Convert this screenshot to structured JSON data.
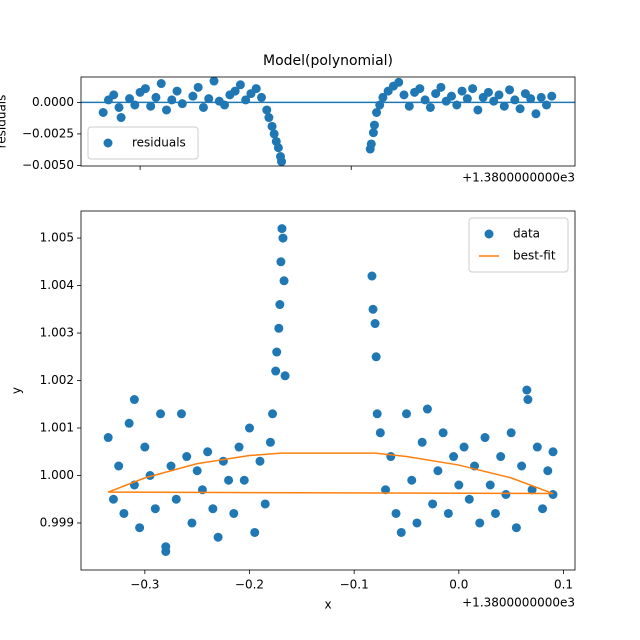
{
  "chart_data": [
    {
      "type": "scatter",
      "title": "Model(polynomial)",
      "ylabel": "residuals",
      "x_offset_label": "+1.3800000000e3",
      "xlim": [
        -0.356,
        0.112
      ],
      "xticks": [
        -0.3,
        -0.1
      ],
      "ylim": [
        -0.00505,
        0.00202
      ],
      "yticks": [
        {
          "value": 0,
          "label": "0.0000"
        },
        {
          "value": -0.0025,
          "label": "−0.0025"
        },
        {
          "value": -0.005,
          "label": "−0.0050"
        }
      ],
      "hline": 0,
      "legend": "lower left",
      "series": [
        {
          "name": "residuals",
          "color": "#1f77b4",
          "mode": "markers",
          "x": [
            -0.335,
            -0.33,
            -0.325,
            -0.32,
            -0.318,
            -0.31,
            -0.305,
            -0.3,
            -0.295,
            -0.29,
            -0.285,
            -0.28,
            -0.275,
            -0.27,
            -0.265,
            -0.26,
            -0.25,
            -0.245,
            -0.24,
            -0.235,
            -0.23,
            -0.225,
            -0.22,
            -0.215,
            -0.21,
            -0.205,
            -0.2,
            -0.195,
            -0.19,
            -0.185,
            -0.18,
            -0.178,
            -0.175,
            -0.173,
            -0.171,
            -0.169,
            -0.167,
            -0.166,
            -0.082,
            -0.081,
            -0.079,
            -0.078,
            -0.076,
            -0.073,
            -0.07,
            -0.065,
            -0.06,
            -0.055,
            -0.05,
            -0.045,
            -0.04,
            -0.035,
            -0.03,
            -0.025,
            -0.02,
            -0.015,
            -0.01,
            -0.005,
            0,
            0.005,
            0.01,
            0.015,
            0.02,
            0.025,
            0.03,
            0.035,
            0.04,
            0.045,
            0.05,
            0.055,
            0.06,
            0.065,
            0.07,
            0.075,
            0.08,
            0.085,
            0.09
          ],
          "values": [
            -0.0008,
            0.0002,
            0.0006,
            -0.0004,
            -0.0012,
            0.0003,
            -0.0002,
            0.0008,
            0.0011,
            -0.0003,
            0.0004,
            0.0015,
            -0.0006,
            0.0002,
            0.0009,
            -0.0001,
            0.0005,
            0.0012,
            -0.0004,
            0.0003,
            0.0017,
            0.0001,
            -0.0002,
            0.0006,
            0.0009,
            0.0014,
            0.0002,
            0.0007,
            0.0011,
            0.0004,
            -0.0006,
            -0.0012,
            -0.0019,
            -0.0025,
            -0.0031,
            -0.0036,
            -0.0043,
            -0.0047,
            -0.0037,
            -0.0033,
            -0.0024,
            -0.0018,
            -0.0008,
            -0.0002,
            0.0004,
            0.0009,
            0.0013,
            0.0016,
            0.0006,
            -0.0003,
            0.0008,
            0.0011,
            0.0002,
            -0.0004,
            0.0007,
            0.0012,
            0.0001,
            0.0005,
            -0.0002,
            0.0009,
            0.0003,
            0.0011,
            -0.0006,
            0.0004,
            0.0008,
            0.0001,
            0.0006,
            -0.0003,
            0.001,
            0.0002,
            -0.0005,
            0.0007,
            0.0003,
            -0.0009,
            0.0004,
            -0.0002,
            0.0005
          ]
        }
      ]
    },
    {
      "type": "scatter",
      "xlabel": "x",
      "ylabel": "y",
      "x_offset_label": "+1.3800000000e3",
      "xlim": [
        -0.361,
        0.111
      ],
      "xticks": [
        {
          "value": -0.3,
          "label": "−0.3"
        },
        {
          "value": -0.2,
          "label": "−0.2"
        },
        {
          "value": -0.1,
          "label": "−0.1"
        },
        {
          "value": 0,
          "label": "0.0"
        },
        0.1
      ],
      "ylim": [
        0.99801,
        1.00557
      ],
      "yticks": [
        0.999,
        {
          "value": 1,
          "label": "1.000"
        },
        1.001,
        1.002,
        1.003,
        1.004,
        1.005
      ],
      "legend": "upper right",
      "series": [
        {
          "name": "data",
          "color": "#1f77b4",
          "mode": "markers",
          "x": [
            -0.335,
            -0.33,
            -0.325,
            -0.32,
            -0.315,
            -0.31,
            -0.31,
            -0.305,
            -0.3,
            -0.295,
            -0.29,
            -0.285,
            -0.28,
            -0.28,
            -0.275,
            -0.27,
            -0.265,
            -0.26,
            -0.255,
            -0.25,
            -0.245,
            -0.24,
            -0.235,
            -0.23,
            -0.225,
            -0.22,
            -0.215,
            -0.21,
            -0.205,
            -0.2,
            -0.195,
            -0.19,
            -0.185,
            -0.18,
            -0.178,
            -0.175,
            -0.174,
            -0.172,
            -0.171,
            -0.17,
            -0.169,
            -0.168,
            -0.167,
            -0.166,
            -0.083,
            -0.082,
            -0.08,
            -0.079,
            -0.078,
            -0.075,
            -0.07,
            -0.065,
            -0.06,
            -0.055,
            -0.05,
            -0.045,
            -0.04,
            -0.035,
            -0.03,
            -0.025,
            -0.02,
            -0.015,
            -0.01,
            -0.005,
            0,
            0.005,
            0.01,
            0.015,
            0.02,
            0.025,
            0.03,
            0.035,
            0.04,
            0.045,
            0.05,
            0.055,
            0.06,
            0.065,
            0.066,
            0.07,
            0.075,
            0.08,
            0.085,
            0.09,
            0.09
          ],
          "values": [
            1.0008,
            0.9995,
            1.0002,
            0.9992,
            1.0011,
            1.0016,
            0.9998,
            0.9989,
            1.0006,
            1.0,
            0.9993,
            1.0013,
            0.9984,
            0.9985,
            1.0002,
            0.9995,
            1.0013,
            1.0004,
            0.999,
            1.0001,
            0.9997,
            1.0005,
            0.9993,
            0.9987,
            1.0003,
            0.9999,
            0.9992,
            1.0006,
            0.9999,
            1.001,
            0.9988,
            1.0003,
            0.9994,
            1.0007,
            1.0013,
            1.0022,
            1.0026,
            1.0031,
            1.0036,
            1.0045,
            1.0052,
            1.005,
            1.0041,
            1.0021,
            1.0042,
            1.0035,
            1.0032,
            1.0025,
            1.0013,
            1.0009,
            0.9997,
            1.0004,
            0.9992,
            0.9988,
            1.0013,
            0.9999,
            0.999,
            1.0007,
            1.0014,
            0.9994,
            1.0001,
            1.0009,
            0.9992,
            1.0004,
            0.9998,
            1.0006,
            0.9995,
            1.0002,
            0.999,
            1.0008,
            0.9998,
            0.9992,
            1.0004,
            0.9996,
            1.0009,
            0.9989,
            1.0002,
            1.0018,
            1.0016,
            0.9997,
            1.0006,
            0.9993,
            1.0001,
            0.9996,
            1.0005
          ]
        },
        {
          "name": "best-fit",
          "color": "#ff7f0e",
          "mode": "line",
          "x": [
            -0.335,
            -0.3,
            -0.25,
            -0.2,
            -0.17,
            -0.08,
            -0.05,
            0,
            0.05,
            0.09,
            -0.335
          ],
          "values": [
            0.99965,
            0.99995,
            1.00025,
            1.00042,
            1.00047,
            1.00047,
            1.0004,
            1.00022,
            0.99995,
            0.99962,
            0.99965
          ]
        }
      ]
    }
  ]
}
